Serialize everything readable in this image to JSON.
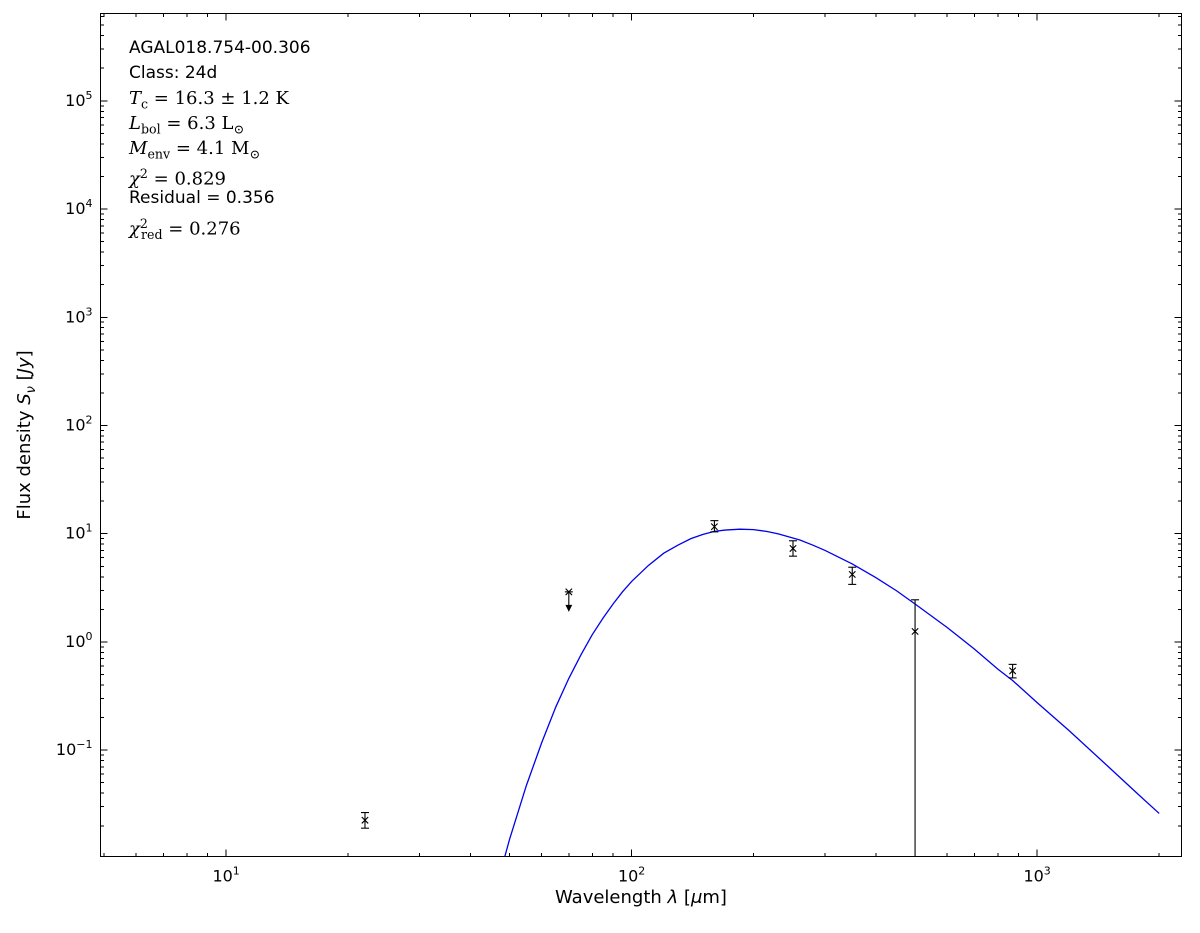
{
  "figure": {
    "background": "#ffffff",
    "frame_color": "#000000",
    "curve_color": "#0000ee",
    "marker_color": "#000000"
  },
  "annotation": {
    "lines": [
      {
        "segments": [
          {
            "t": "AGAL018.754-00.306"
          }
        ]
      },
      {
        "segments": [
          {
            "t": "Class: 24d"
          }
        ]
      },
      {
        "segments": [
          {
            "t": "T"
          },
          {
            "t": "c"
          },
          {
            "t": " = 16.3 ± 1.2 K"
          }
        ]
      },
      {
        "segments": [
          {
            "t": "L"
          },
          {
            "t": "bol"
          },
          {
            "t": " = 6.3 L"
          },
          {
            "t": "⊙"
          }
        ]
      },
      {
        "segments": [
          {
            "t": "M"
          },
          {
            "t": "env"
          },
          {
            "t": " = 4.1 M"
          },
          {
            "t": "⊙"
          }
        ]
      },
      {
        "segments": [
          {
            "t": "χ"
          },
          {
            "t": "2"
          },
          {
            "t": " = 0.829"
          }
        ]
      },
      {
        "segments": [
          {
            "t": "Residual = 0.356"
          }
        ]
      },
      {
        "segments": [
          {
            "t": "χ"
          },
          {
            "t": "2"
          },
          {
            "t": "red"
          },
          {
            "t": " = 0.276"
          }
        ]
      }
    ]
  },
  "chart_data": {
    "type": "scatter",
    "title": "",
    "xlabel": "Wavelength λ [μm]",
    "ylabel": "Flux density Sν [Jy]",
    "xscale": "log",
    "yscale": "log",
    "xlim": [
      4.9,
      2270
    ],
    "ylim": [
      0.0104,
      641000
    ],
    "x_tick_exponents": [
      1,
      2,
      3
    ],
    "y_tick_exponents": [
      -1,
      0,
      1,
      2,
      3,
      4,
      5
    ],
    "grid": false,
    "legend": false,
    "xlabel_segments": [
      {
        "t": "Wavelength ",
        "s": "rm"
      },
      {
        "t": "λ",
        "s": "it"
      },
      {
        "t": " [",
        "s": "rm"
      },
      {
        "t": "μ",
        "s": "it"
      },
      {
        "t": "m]",
        "s": "rm"
      }
    ],
    "ylabel_segments": [
      {
        "t": "Flux density ",
        "s": "rm"
      },
      {
        "t": "S",
        "s": "it"
      },
      {
        "t": "ν",
        "s": "subit"
      },
      {
        "t": " [",
        "s": "rm"
      },
      {
        "t": "Jy",
        "s": "it"
      },
      {
        "t": "]",
        "s": "rm"
      }
    ],
    "fit_curve": {
      "name": "greybody fit",
      "color": "#0000ee",
      "points": [
        [
          45,
          0.0035
        ],
        [
          48,
          0.0086
        ],
        [
          50,
          0.015
        ],
        [
          52,
          0.024
        ],
        [
          55,
          0.047
        ],
        [
          60,
          0.117
        ],
        [
          65,
          0.25
        ],
        [
          70,
          0.46
        ],
        [
          75,
          0.76
        ],
        [
          80,
          1.17
        ],
        [
          85,
          1.66
        ],
        [
          90,
          2.24
        ],
        [
          95,
          2.91
        ],
        [
          100,
          3.62
        ],
        [
          110,
          5.09
        ],
        [
          120,
          6.6
        ],
        [
          130,
          7.83
        ],
        [
          140,
          9.0
        ],
        [
          150,
          9.85
        ],
        [
          160,
          10.5
        ],
        [
          170,
          10.8
        ],
        [
          185,
          11.0
        ],
        [
          200,
          10.9
        ],
        [
          215,
          10.5
        ],
        [
          230,
          9.95
        ],
        [
          260,
          8.74
        ],
        [
          280,
          7.83
        ],
        [
          300,
          7.0
        ],
        [
          350,
          5.25
        ],
        [
          400,
          3.93
        ],
        [
          450,
          2.97
        ],
        [
          500,
          2.24
        ],
        [
          600,
          1.36
        ],
        [
          700,
          0.86
        ],
        [
          800,
          0.56
        ],
        [
          870,
          0.44
        ],
        [
          1000,
          0.275
        ],
        [
          1200,
          0.151
        ],
        [
          1500,
          0.07
        ],
        [
          1750,
          0.041
        ],
        [
          2000,
          0.026
        ]
      ]
    },
    "photometry": {
      "marker": "x",
      "color": "#000000",
      "points": [
        {
          "wavelength_um": 22,
          "flux_jy": 0.0225,
          "err_hi": 0.004,
          "err_lo": 0.0035
        },
        {
          "wavelength_um": 70,
          "flux_jy": 2.9,
          "upper_limit": true
        },
        {
          "wavelength_um": 160,
          "flux_jy": 11.6,
          "err_hi": 1.6,
          "err_lo": 1.2
        },
        {
          "wavelength_um": 250,
          "flux_jy": 7.3,
          "err_hi": 1.3,
          "err_lo": 1.1
        },
        {
          "wavelength_um": 350,
          "flux_jy": 4.2,
          "err_hi": 0.7,
          "err_lo": 0.8
        },
        {
          "wavelength_um": 500,
          "flux_jy": 1.25,
          "err_hi": 1.2,
          "err_lo_to_axis": true
        },
        {
          "wavelength_um": 870,
          "flux_jy": 0.54,
          "err_hi": 0.08,
          "err_lo": 0.075
        }
      ]
    },
    "fit_parameters": {
      "source": "AGAL018.754-00.306",
      "class": "24d",
      "T_c_K": "16.3 ± 1.2",
      "L_bol_Lsun": 6.3,
      "M_env_Msun": 4.1,
      "chi2": 0.829,
      "residual": 0.356,
      "chi2_red": 0.276
    }
  }
}
